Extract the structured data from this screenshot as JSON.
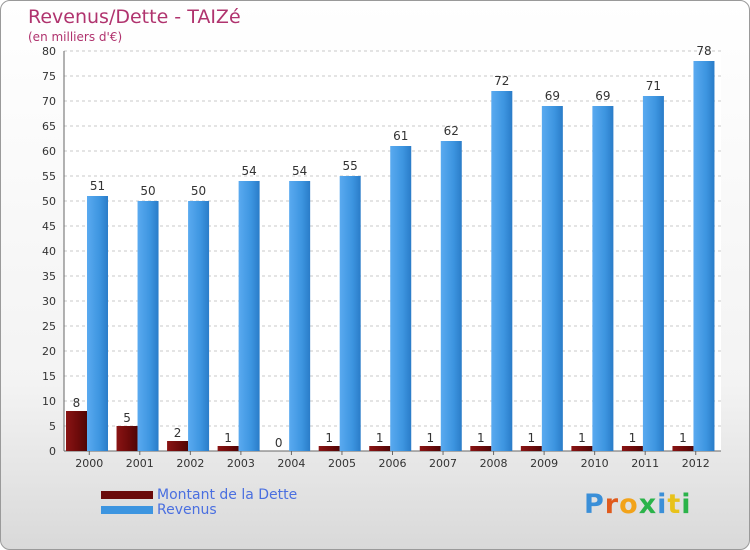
{
  "header": {
    "title": "Revenus/Dette - TAIZé",
    "subtitle": "(en milliers d'€)"
  },
  "legend": {
    "items": [
      {
        "label": "Montant de la Dette",
        "color": "#6b0a0a"
      },
      {
        "label": "Revenus",
        "color": "#3d95e0"
      }
    ]
  },
  "logo": {
    "letters": [
      "P",
      "r",
      "o",
      "x",
      "i",
      "t",
      "i"
    ],
    "colors": [
      "#3a8fd8",
      "#e05a1c",
      "#f2a31a",
      "#2bb34a",
      "#3a8fd8",
      "#e8c21a",
      "#2bb34a"
    ]
  },
  "chart_data": {
    "type": "bar",
    "categories": [
      "2000",
      "2001",
      "2002",
      "2003",
      "2004",
      "2005",
      "2006",
      "2007",
      "2008",
      "2009",
      "2010",
      "2011",
      "2012"
    ],
    "series": [
      {
        "name": "Montant de la Dette",
        "values": [
          8,
          5,
          2,
          1,
          0,
          1,
          1,
          1,
          1,
          1,
          1,
          1,
          1
        ],
        "color": "#6b0a0a"
      },
      {
        "name": "Revenus",
        "values": [
          51,
          50,
          50,
          54,
          54,
          55,
          61,
          62,
          72,
          69,
          69,
          71,
          78
        ],
        "color": "#3d95e0"
      }
    ],
    "ylim": [
      0,
      80
    ],
    "yticks": [
      0,
      5,
      10,
      15,
      20,
      25,
      30,
      35,
      40,
      45,
      50,
      55,
      60,
      65,
      70,
      75,
      80
    ],
    "grid": true,
    "legend_position": "bottom-left"
  }
}
